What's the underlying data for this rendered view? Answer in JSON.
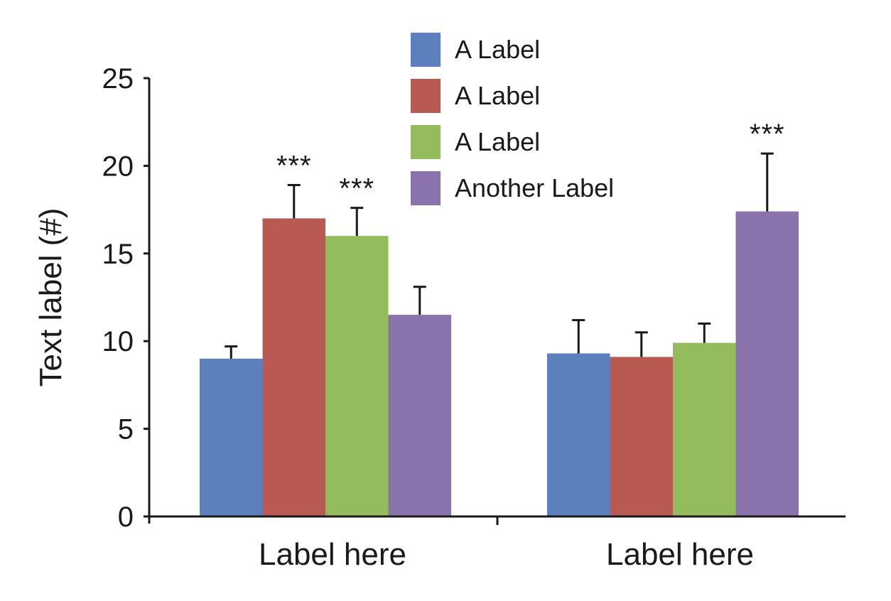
{
  "chart_data": {
    "type": "bar",
    "title": "",
    "xlabel": "",
    "ylabel": "Text label (#)",
    "ylim": [
      0,
      25
    ],
    "yticks": [
      "0",
      "5",
      "10",
      "15",
      "20",
      "25"
    ],
    "categories": [
      "Label here",
      "Label here"
    ],
    "legend_position": "top-center",
    "series": [
      {
        "name": "A Label",
        "color": "#5b80bd",
        "values": [
          9.0,
          9.3
        ],
        "errors": [
          0.7,
          1.9
        ],
        "significance": [
          "",
          ""
        ]
      },
      {
        "name": "A Label",
        "color": "#b85a52",
        "values": [
          17.0,
          9.1
        ],
        "errors": [
          1.9,
          1.4
        ],
        "significance": [
          "***",
          ""
        ]
      },
      {
        "name": "A Label",
        "color": "#94bc5c",
        "values": [
          16.0,
          9.9
        ],
        "errors": [
          1.6,
          1.1
        ],
        "significance": [
          "***",
          ""
        ]
      },
      {
        "name": "Another Label",
        "color": "#8a73ad",
        "values": [
          11.5,
          17.4
        ],
        "errors": [
          1.6,
          3.3
        ],
        "significance": [
          "",
          "***"
        ]
      }
    ]
  }
}
